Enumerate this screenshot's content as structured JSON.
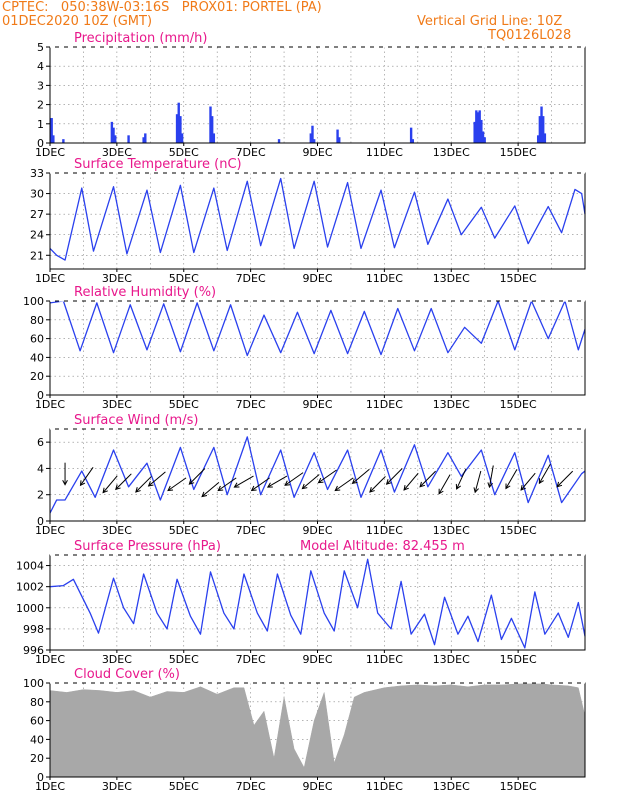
{
  "header": {
    "line1": "CPTEC:   050:38W-03:16S   PROX01: PORTEL (PA)",
    "line2": "01DEC2020 10Z (GMT)",
    "grid_note": "Vertical Grid Line: 10Z",
    "code": "TQ0126L028"
  },
  "colors": {
    "header": "#f07a18",
    "title": "#e8188c",
    "series": "#2a40ee",
    "cloud": "#a8a8a8",
    "arrow": "#000000",
    "grid": "#888888"
  },
  "chart_data": [
    {
      "type": "bar",
      "title": "Precipitation (mm/h)",
      "x_ticks": [
        "1DEC",
        "3DEC",
        "5DEC",
        "7DEC",
        "9DEC",
        "11DEC",
        "13DEC",
        "15DEC"
      ],
      "ylim": [
        0,
        5
      ],
      "y_ticks": [
        0,
        1,
        2,
        3,
        4,
        5
      ],
      "grid": true,
      "x_day": [
        0.05,
        0.1,
        0.4,
        1.85,
        1.9,
        1.95,
        2.35,
        2.8,
        2.85,
        3.8,
        3.85,
        3.9,
        3.95,
        4.8,
        4.85,
        4.9,
        6.85,
        7.8,
        7.85,
        7.9,
        8.6,
        8.65,
        10.8,
        10.85,
        12.7,
        12.75,
        12.8,
        12.85,
        12.9,
        12.95,
        13.0,
        14.6,
        14.65,
        14.7,
        14.75,
        14.8
      ],
      "values": [
        1.3,
        0.4,
        0.2,
        1.1,
        0.8,
        0.4,
        0.4,
        0.3,
        0.5,
        1.5,
        2.1,
        1.4,
        0.5,
        1.9,
        1.4,
        0.5,
        0.2,
        0.5,
        0.9,
        0.2,
        0.7,
        0.3,
        0.8,
        0.2,
        1.1,
        1.7,
        1.6,
        1.7,
        1.2,
        0.6,
        0.3,
        0.4,
        1.4,
        1.9,
        1.4,
        0.5
      ]
    },
    {
      "type": "line",
      "title": "Surface Temperature (nC)",
      "x_ticks": [
        "1DEC",
        "3DEC",
        "5DEC",
        "7DEC",
        "9DEC",
        "11DEC",
        "13DEC",
        "15DEC"
      ],
      "ylim": [
        19,
        33
      ],
      "y_ticks": [
        21,
        24,
        27,
        30,
        33
      ],
      "grid": true,
      "x_day": [
        0.0,
        0.2,
        0.45,
        0.95,
        1.3,
        1.9,
        2.3,
        2.9,
        3.3,
        3.9,
        4.3,
        4.9,
        5.3,
        5.9,
        6.3,
        6.9,
        7.3,
        7.9,
        8.3,
        8.9,
        9.3,
        9.9,
        10.3,
        10.9,
        11.3,
        11.9,
        12.3,
        12.9,
        13.3,
        13.9,
        14.3,
        14.9,
        15.3,
        15.7,
        15.9,
        16.0
      ],
      "values": [
        22.0,
        21.0,
        20.3,
        30.8,
        21.6,
        31.0,
        21.2,
        30.5,
        21.4,
        31.2,
        21.4,
        30.8,
        21.7,
        31.8,
        22.4,
        32.2,
        22.0,
        31.8,
        22.2,
        31.6,
        22.0,
        30.5,
        22.1,
        30.2,
        22.6,
        29.2,
        24.0,
        28.0,
        23.5,
        28.2,
        22.7,
        28.1,
        24.3,
        30.6,
        30.0,
        27.0
      ]
    },
    {
      "type": "line",
      "title": "Relative Humidity (%)",
      "x_ticks": [
        "1DEC",
        "3DEC",
        "5DEC",
        "7DEC",
        "9DEC",
        "11DEC",
        "13DEC",
        "15DEC"
      ],
      "ylim": [
        0,
        100
      ],
      "y_ticks": [
        0,
        20,
        40,
        60,
        80,
        100
      ],
      "grid": true,
      "x_day": [
        0.0,
        0.4,
        0.9,
        1.4,
        1.9,
        2.4,
        2.9,
        3.4,
        3.9,
        4.4,
        4.9,
        5.4,
        5.9,
        6.4,
        6.9,
        7.4,
        7.9,
        8.4,
        8.9,
        9.4,
        9.9,
        10.4,
        10.9,
        11.4,
        11.9,
        12.4,
        12.9,
        13.4,
        13.9,
        14.4,
        14.9,
        15.4,
        15.8,
        16.0
      ],
      "values": [
        98,
        100,
        47,
        98,
        45,
        96,
        48,
        97,
        46,
        98,
        47,
        96,
        42,
        85,
        45,
        88,
        44,
        90,
        44,
        89,
        43,
        92,
        47,
        92,
        45,
        72,
        55,
        100,
        48,
        100,
        60,
        100,
        48,
        70
      ]
    },
    {
      "type": "line",
      "title": "Surface Wind (m/s)",
      "x_ticks": [
        "1DEC",
        "3DEC",
        "5DEC",
        "7DEC",
        "9DEC",
        "11DEC",
        "13DEC",
        "15DEC"
      ],
      "ylim": [
        0,
        7
      ],
      "y_ticks": [
        0,
        2,
        4,
        6
      ],
      "grid": true,
      "x_day": [
        0.0,
        0.2,
        0.45,
        0.95,
        1.35,
        1.9,
        2.35,
        2.9,
        3.3,
        3.9,
        4.3,
        4.9,
        5.3,
        5.9,
        6.3,
        6.9,
        7.3,
        7.9,
        8.3,
        8.9,
        9.3,
        9.9,
        10.3,
        10.9,
        11.3,
        11.9,
        12.3,
        12.9,
        13.3,
        13.9,
        14.3,
        14.9,
        15.3,
        15.9,
        16.0
      ],
      "values": [
        0.6,
        1.6,
        1.6,
        3.8,
        1.8,
        5.4,
        2.6,
        4.4,
        1.6,
        5.6,
        2.4,
        5.6,
        2.0,
        6.4,
        2.0,
        5.4,
        1.8,
        5.2,
        2.4,
        5.4,
        1.8,
        5.4,
        2.2,
        5.8,
        2.6,
        5.2,
        3.4,
        5.4,
        2.0,
        5.2,
        1.4,
        5.0,
        1.4,
        3.6,
        3.8
      ],
      "arrows_x_day": [
        0.45,
        1.1,
        1.8,
        2.2,
        2.8,
        3.2,
        3.8,
        4.4,
        4.8,
        5.3,
        5.8,
        6.3,
        6.8,
        7.3,
        7.8,
        8.3,
        8.8,
        9.3,
        9.8,
        10.3,
        10.8,
        11.3,
        11.8,
        12.3,
        12.8,
        13.2,
        13.8,
        14.3,
        14.8,
        15.4
      ],
      "arrows_speed": [
        3.6,
        3.4,
        2.8,
        3.0,
        2.8,
        3.2,
        2.8,
        3.4,
        2.4,
        2.8,
        3.0,
        2.8,
        3.0,
        3.2,
        3.0,
        3.4,
        2.8,
        3.4,
        2.8,
        3.4,
        3.0,
        3.2,
        2.8,
        3.2,
        3.0,
        3.4,
        3.2,
        3.0,
        3.6,
        3.2
      ],
      "arrows_dir_deg": [
        270,
        235,
        230,
        225,
        225,
        220,
        215,
        225,
        220,
        215,
        210,
        215,
        210,
        215,
        220,
        215,
        215,
        220,
        225,
        225,
        230,
        225,
        240,
        245,
        255,
        260,
        240,
        230,
        240,
        225
      ]
    },
    {
      "type": "line",
      "title": "Surface Pressure (hPa)",
      "annotation": "Model Altitude: 82.455  m",
      "x_ticks": [
        "1DEC",
        "3DEC",
        "5DEC",
        "7DEC",
        "9DEC",
        "11DEC",
        "13DEC",
        "15DEC"
      ],
      "ylim": [
        996,
        1005
      ],
      "y_ticks": [
        996,
        998,
        1000,
        1002,
        1004
      ],
      "grid": true,
      "x_day": [
        0.0,
        0.4,
        0.7,
        1.2,
        1.45,
        1.9,
        2.2,
        2.5,
        2.8,
        3.2,
        3.5,
        3.8,
        4.2,
        4.5,
        4.8,
        5.2,
        5.5,
        5.8,
        6.2,
        6.5,
        6.8,
        7.2,
        7.5,
        7.8,
        8.2,
        8.5,
        8.8,
        9.2,
        9.5,
        9.8,
        10.2,
        10.5,
        10.8,
        11.2,
        11.5,
        11.8,
        12.2,
        12.5,
        12.8,
        13.2,
        13.5,
        13.8,
        14.2,
        14.5,
        14.8,
        15.2,
        15.5,
        15.8,
        16.0
      ],
      "values": [
        1002.0,
        1002.1,
        1002.7,
        999.5,
        997.6,
        1002.8,
        1000.0,
        998.5,
        1003.2,
        999.5,
        998.0,
        1002.7,
        999.2,
        997.5,
        1003.4,
        999.5,
        998.0,
        1003.2,
        999.5,
        997.8,
        1003.2,
        999.3,
        997.5,
        1003.5,
        999.5,
        997.8,
        1003.5,
        1000.0,
        1004.6,
        999.5,
        998.0,
        1002.5,
        997.5,
        999.4,
        996.5,
        1001.0,
        997.5,
        999.2,
        996.8,
        1001.2,
        997.0,
        999.0,
        996.2,
        1001.5,
        997.5,
        999.5,
        997.2,
        1000.5,
        997.3
      ]
    },
    {
      "type": "area",
      "title": "Cloud Cover (%)",
      "x_ticks": [
        "1DEC",
        "3DEC",
        "5DEC",
        "7DEC",
        "9DEC",
        "11DEC",
        "13DEC",
        "15DEC"
      ],
      "ylim": [
        0,
        100
      ],
      "y_ticks": [
        0,
        20,
        40,
        60,
        80,
        100
      ],
      "grid": true,
      "x_day": [
        0.0,
        0.5,
        1.0,
        1.5,
        2.0,
        2.5,
        3.0,
        3.5,
        4.0,
        4.5,
        5.0,
        5.5,
        5.8,
        6.1,
        6.4,
        6.7,
        7.0,
        7.3,
        7.6,
        7.9,
        8.2,
        8.5,
        8.8,
        9.1,
        9.4,
        10.0,
        10.5,
        11.0,
        11.5,
        12.0,
        12.5,
        13.0,
        13.5,
        14.0,
        14.5,
        15.0,
        15.5,
        15.8,
        16.0
      ],
      "values": [
        92,
        90,
        93,
        92,
        90,
        92,
        85,
        91,
        90,
        96,
        88,
        95,
        95,
        55,
        70,
        20,
        85,
        30,
        10,
        60,
        90,
        15,
        45,
        85,
        90,
        95,
        97,
        98,
        97,
        98,
        96,
        98,
        98,
        99,
        100,
        98,
        97,
        95,
        65
      ]
    }
  ]
}
